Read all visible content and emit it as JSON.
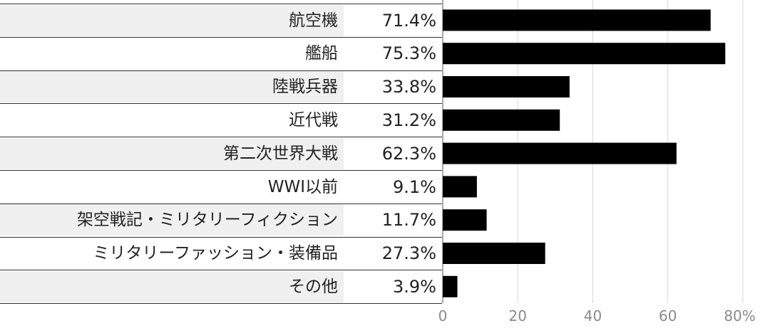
{
  "chart_data": {
    "type": "bar",
    "orientation": "horizontal",
    "categories": [
      "航空機",
      "艦船",
      "陸戦兵器",
      "近代戦",
      "第二次世界大戦",
      "WWI以前",
      "架空戦記・ミリタリーフィクション",
      "ミリタリーファッション・装備品",
      "その他"
    ],
    "values": [
      71.4,
      75.3,
      33.8,
      31.2,
      62.3,
      9.1,
      11.7,
      27.3,
      3.9
    ],
    "value_labels": [
      "71.4%",
      "75.3%",
      "33.8%",
      "31.2%",
      "62.3%",
      "9.1%",
      "11.7%",
      "27.3%",
      "3.9%"
    ],
    "xlim": [
      0,
      80
    ],
    "xticks": [
      0,
      20,
      40,
      60,
      80
    ],
    "xtick_labels": [
      "0",
      "20",
      "40",
      "60",
      "80%"
    ],
    "grid": true,
    "bar_color": "#000000",
    "title": "",
    "xlabel": "",
    "ylabel": ""
  }
}
